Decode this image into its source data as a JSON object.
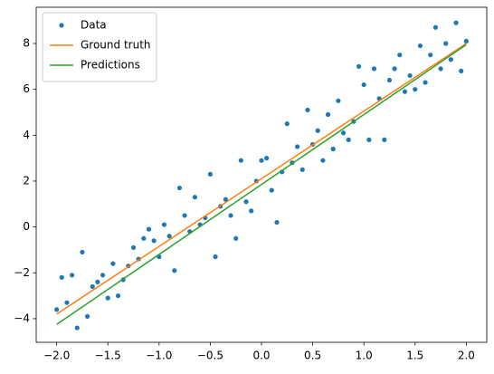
{
  "chart_data": {
    "type": "scatter",
    "series": [
      {
        "name": "Data",
        "color": "#1f77b4",
        "mode": "markers",
        "x": [
          -2.0,
          -1.95,
          -1.9,
          -1.85,
          -1.8,
          -1.75,
          -1.7,
          -1.65,
          -1.6,
          -1.55,
          -1.5,
          -1.45,
          -1.4,
          -1.35,
          -1.3,
          -1.25,
          -1.2,
          -1.15,
          -1.1,
          -1.05,
          -1.0,
          -0.95,
          -0.9,
          -0.85,
          -0.8,
          -0.75,
          -0.7,
          -0.65,
          -0.6,
          -0.55,
          -0.5,
          -0.45,
          -0.4,
          -0.35,
          -0.3,
          -0.25,
          -0.2,
          -0.15,
          -0.1,
          -0.05,
          0.0,
          0.05,
          0.1,
          0.15,
          0.2,
          0.25,
          0.3,
          0.35,
          0.4,
          0.45,
          0.5,
          0.55,
          0.6,
          0.65,
          0.7,
          0.75,
          0.8,
          0.85,
          0.9,
          0.95,
          1.0,
          1.05,
          1.1,
          1.15,
          1.2,
          1.25,
          1.3,
          1.35,
          1.4,
          1.45,
          1.5,
          1.55,
          1.6,
          1.65,
          1.7,
          1.75,
          1.8,
          1.85,
          1.9,
          1.95,
          2.0
        ],
        "values": [
          -3.6,
          -2.2,
          -3.3,
          -2.1,
          -4.4,
          -1.1,
          -3.9,
          -2.6,
          -2.4,
          -2.1,
          -3.1,
          -1.6,
          -3.0,
          -2.3,
          -1.7,
          -0.9,
          -1.4,
          -0.5,
          -0.1,
          -0.6,
          -1.3,
          0.1,
          -0.4,
          -1.9,
          1.7,
          0.5,
          -0.2,
          1.3,
          0.1,
          0.4,
          2.3,
          -1.3,
          0.9,
          1.2,
          0.5,
          -0.5,
          2.9,
          1.1,
          0.7,
          2.0,
          2.9,
          3.0,
          1.6,
          0.2,
          2.4,
          4.5,
          2.8,
          3.5,
          2.5,
          5.1,
          3.6,
          4.2,
          2.9,
          4.9,
          3.4,
          5.5,
          4.1,
          3.8,
          4.6,
          7.0,
          6.2,
          3.8,
          6.9,
          5.6,
          3.8,
          6.4,
          6.9,
          7.5,
          5.9,
          6.6,
          6.0,
          7.9,
          6.3,
          7.5,
          8.7,
          6.9,
          8.0,
          7.3,
          8.9,
          6.8,
          8.1
        ]
      },
      {
        "name": "Ground truth",
        "color": "#ff7f0e",
        "mode": "line",
        "x": [
          -2,
          2
        ],
        "values": [
          -3.8,
          8.0
        ]
      },
      {
        "name": "Predictions",
        "color": "#2ca02c",
        "mode": "line",
        "x": [
          -2,
          2
        ],
        "values": [
          -4.25,
          7.95
        ]
      }
    ],
    "xlim": [
      -2.2,
      2.2
    ],
    "ylim": [
      -5.03,
      9.58
    ],
    "xticks": [
      {
        "value": -2,
        "label": "−2.0"
      },
      {
        "value": -1.5,
        "label": "−1.5"
      },
      {
        "value": -1,
        "label": "−1.0"
      },
      {
        "value": -0.5,
        "label": "−0.5"
      },
      {
        "value": 0,
        "label": "0.0"
      },
      {
        "value": 0.5,
        "label": "0.5"
      },
      {
        "value": 1,
        "label": "1.0"
      },
      {
        "value": 1.5,
        "label": "1.5"
      },
      {
        "value": 2,
        "label": "2.0"
      }
    ],
    "yticks": [
      {
        "value": -4,
        "label": "−4"
      },
      {
        "value": -2,
        "label": "−2"
      },
      0,
      2,
      4,
      6,
      8
    ],
    "grid": false,
    "legend": "upper left"
  }
}
